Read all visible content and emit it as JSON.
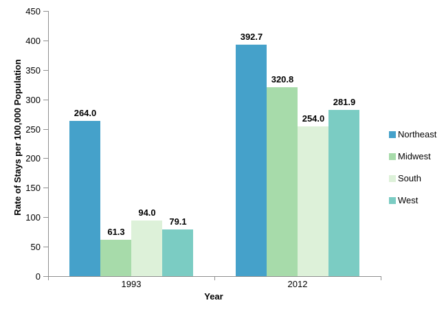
{
  "chart_data": {
    "type": "bar",
    "title": "",
    "categories": [
      "1993",
      "2012"
    ],
    "series": [
      {
        "name": "Northeast",
        "color": "#45A1CA",
        "values": [
          264.0,
          392.7
        ]
      },
      {
        "name": "Midwest",
        "color": "#A7DBAA",
        "values": [
          61.3,
          320.8
        ]
      },
      {
        "name": "South",
        "color": "#DDF1D9",
        "values": [
          94.0,
          254.0
        ]
      },
      {
        "name": "West",
        "color": "#7BCCC3",
        "values": [
          79.1,
          281.9
        ]
      }
    ],
    "xlabel": "Year",
    "ylabel": "Rate of Stays per 100,000 Population",
    "ylim": [
      0,
      450
    ],
    "ytick_interval": 50,
    "yticks": [
      "0",
      "50",
      "100",
      "150",
      "200",
      "250",
      "300",
      "350",
      "400",
      "450"
    ],
    "value_label_decimals": 1,
    "legend_position": "right",
    "grid": false
  },
  "colors": {
    "axis": "#8E8E8E",
    "text": "#000000",
    "background": "#FFFFFF"
  }
}
